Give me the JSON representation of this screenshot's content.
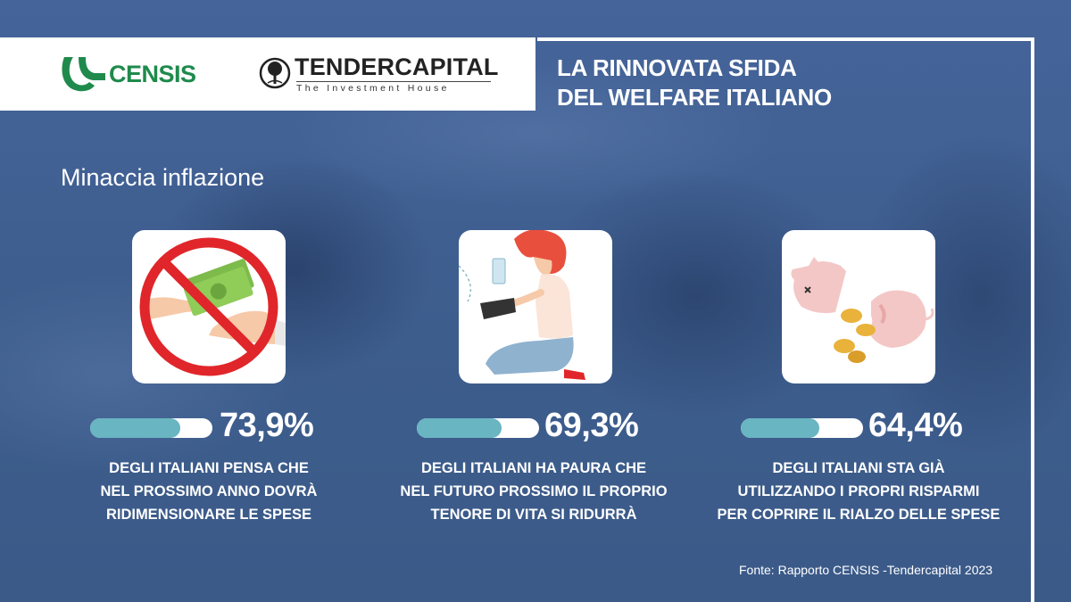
{
  "header": {
    "logos": {
      "censis": "CENSIS",
      "tendercapital": "TENDERCAPITAL",
      "tendercapital_tagline": "The Investment House"
    },
    "title_line1": "LA RINNOVATA SFIDA",
    "title_line2": "DEL WELFARE ITALIANO"
  },
  "section": {
    "title": "Minaccia inflazione"
  },
  "stats": [
    {
      "icon": "no-money-icon",
      "percent": "73,9%",
      "value": 73.9,
      "lines": [
        "DEGLI ITALIANI PENSA CHE",
        "NEL PROSSIMO ANNO DOVRÀ",
        "RIDIMENSIONARE LE SPESE"
      ]
    },
    {
      "icon": "worried-woman-wallet-icon",
      "percent": "69,3%",
      "value": 69.3,
      "lines": [
        "DEGLI ITALIANI HA PAURA CHE",
        "NEL FUTURO PROSSIMO IL PROPRIO",
        "TENORE DI VITA SI RIDURRÀ"
      ]
    },
    {
      "icon": "broken-piggy-bank-icon",
      "percent": "64,4%",
      "value": 64.4,
      "lines": [
        "DEGLI ITALIANI STA GIÀ",
        "UTILIZZANDO I PROPRI RISPARMI",
        "PER COPRIRE IL RIALZO DELLE SPESE"
      ]
    }
  ],
  "footer": {
    "source": "Fonte: Rapporto CENSIS -Tendercapital 2023"
  },
  "colors": {
    "background": "#3f5f8e",
    "bar_fill": "#69b5c2",
    "censis_green": "#1f8a4c",
    "ban_red": "#e0262a"
  }
}
